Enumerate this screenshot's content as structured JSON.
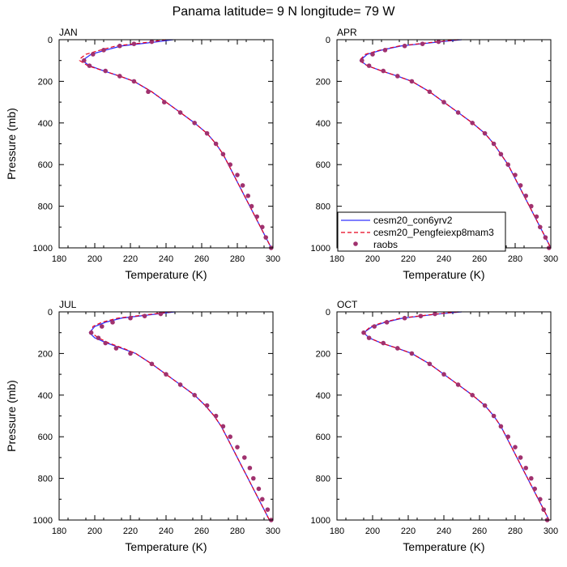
{
  "title": "Panama  latitude= 9 N longitude= 79 W",
  "colors": {
    "model1": "#3333ff",
    "model2": "#e8001c",
    "obs": "#a0316e"
  },
  "legend": {
    "panel": "APR",
    "placement": "lower-left",
    "entries": [
      "cesm20_con6yrv2",
      "cesm20_Pengfeiexp8mam3",
      "raobs"
    ]
  },
  "chart_data": [
    {
      "type": "line",
      "title": "JAN",
      "xlabel": "Temperature (K)",
      "ylabel": "Pressure (mb)",
      "xlim": [
        180,
        300
      ],
      "ylim": [
        1000,
        0
      ],
      "y_inverted": true,
      "xticks": [
        180,
        200,
        220,
        240,
        260,
        280,
        300
      ],
      "yticks": [
        0,
        200,
        400,
        600,
        800,
        1000
      ],
      "series": [
        {
          "name": "cesm20_con6yrv2",
          "style": "solid",
          "pressure": [
            0,
            10,
            30,
            50,
            70,
            100,
            125,
            150,
            175,
            200,
            250,
            300,
            350,
            400,
            450,
            500,
            550,
            600,
            650,
            700,
            750,
            800,
            850,
            900,
            950,
            1000
          ],
          "temperature": [
            244,
            235,
            215,
            206,
            198,
            193,
            197,
            205,
            214,
            222,
            232,
            240,
            248,
            256,
            263,
            268,
            272,
            275,
            278,
            281,
            284,
            287,
            290,
            293,
            296,
            299
          ]
        },
        {
          "name": "cesm20_Pengfeiexp8mam3",
          "style": "dashed",
          "pressure": [
            0,
            10,
            30,
            50,
            70,
            90,
            100,
            125,
            150,
            175,
            200,
            250,
            300,
            350,
            400,
            450,
            500,
            550,
            600,
            650,
            700,
            750,
            800,
            850,
            900,
            950,
            1000
          ],
          "temperature": [
            240,
            232,
            212,
            203,
            195,
            192,
            191.5,
            196,
            205,
            214,
            222,
            232,
            240,
            248,
            256,
            263,
            268,
            272,
            275,
            278,
            281,
            284,
            287,
            290,
            293,
            296,
            299
          ]
        },
        {
          "name": "raobs",
          "style": "markers",
          "pressure": [
            10,
            20,
            30,
            50,
            70,
            100,
            125,
            150,
            175,
            200,
            250,
            300,
            350,
            400,
            450,
            500,
            550,
            600,
            650,
            700,
            750,
            800,
            850,
            900,
            950,
            1000
          ],
          "temperature": [
            232,
            222,
            214,
            205,
            199,
            194,
            197,
            206,
            214,
            222,
            230,
            239,
            248,
            256,
            263,
            268,
            272,
            276,
            280,
            283,
            286,
            288,
            291,
            294,
            296,
            299
          ]
        }
      ]
    },
    {
      "type": "line",
      "title": "APR",
      "xlabel": "Temperature (K)",
      "ylabel": "",
      "xlim": [
        180,
        300
      ],
      "ylim": [
        1000,
        0
      ],
      "y_inverted": true,
      "xticks": [
        180,
        200,
        220,
        240,
        260,
        280,
        300
      ],
      "yticks": [
        0,
        200,
        400,
        600,
        800,
        1000
      ],
      "series": [
        {
          "name": "cesm20_con6yrv2",
          "style": "solid",
          "pressure": [
            0,
            10,
            30,
            50,
            70,
            100,
            125,
            150,
            175,
            200,
            250,
            300,
            350,
            400,
            450,
            500,
            550,
            600,
            650,
            700,
            750,
            800,
            850,
            900,
            950,
            1000
          ],
          "temperature": [
            250,
            238,
            216,
            205,
            197,
            193,
            197,
            205,
            214,
            222,
            232,
            240,
            248,
            256,
            263,
            268,
            272,
            276,
            279,
            282,
            285,
            288,
            291,
            294,
            297,
            300
          ]
        },
        {
          "name": "cesm20_Pengfeiexp8mam3",
          "style": "dashed",
          "pressure": [
            0,
            10,
            30,
            50,
            70,
            100,
            125,
            150,
            175,
            200,
            250,
            300,
            350,
            400,
            450,
            500,
            550,
            600,
            650,
            700,
            750,
            800,
            850,
            900,
            950,
            1000
          ],
          "temperature": [
            248,
            236,
            215,
            204,
            196,
            192.5,
            197,
            205,
            214,
            222,
            232,
            240,
            248,
            256,
            263,
            268,
            272,
            276,
            279,
            282,
            285,
            288,
            291,
            294,
            297,
            300
          ]
        },
        {
          "name": "raobs",
          "style": "markers",
          "pressure": [
            10,
            20,
            30,
            50,
            70,
            100,
            125,
            150,
            175,
            200,
            250,
            300,
            350,
            400,
            450,
            500,
            550,
            600,
            650,
            700,
            750,
            800,
            850,
            900,
            950,
            1000
          ],
          "temperature": [
            237,
            228,
            218,
            207,
            200,
            194,
            198,
            206,
            214,
            222,
            232,
            240,
            248,
            256,
            263,
            268,
            272,
            276,
            280,
            283,
            286,
            289,
            292,
            294,
            297,
            299
          ]
        }
      ]
    },
    {
      "type": "line",
      "title": "JUL",
      "xlabel": "Temperature (K)",
      "ylabel": "Pressure (mb)",
      "xlim": [
        180,
        300
      ],
      "ylim": [
        1000,
        0
      ],
      "y_inverted": true,
      "xticks": [
        180,
        200,
        220,
        240,
        260,
        280,
        300
      ],
      "yticks": [
        0,
        200,
        400,
        600,
        800,
        1000
      ],
      "series": [
        {
          "name": "cesm20_con6yrv2",
          "style": "solid",
          "pressure": [
            0,
            10,
            30,
            50,
            70,
            100,
            125,
            150,
            175,
            200,
            250,
            300,
            350,
            400,
            450,
            500,
            550,
            600,
            650,
            700,
            750,
            800,
            850,
            900,
            950,
            1000
          ],
          "temperature": [
            245,
            235,
            215,
            206,
            200,
            197,
            200,
            207,
            215,
            223,
            232,
            240,
            248,
            256,
            262,
            267,
            271,
            274,
            277,
            280,
            283,
            286,
            289,
            292,
            295,
            298
          ]
        },
        {
          "name": "cesm20_Pengfeiexp8mam3",
          "style": "dashed",
          "pressure": [
            0,
            10,
            30,
            50,
            70,
            100,
            125,
            150,
            175,
            200,
            250,
            300,
            350,
            400,
            450,
            500,
            550,
            600,
            650,
            700,
            750,
            800,
            850,
            900,
            950,
            1000
          ],
          "temperature": [
            243,
            233,
            213,
            204,
            199,
            198,
            202,
            208,
            216,
            223,
            232,
            240,
            248,
            256,
            262,
            267,
            271,
            274,
            277,
            280,
            283,
            286,
            289,
            292,
            295,
            298
          ]
        },
        {
          "name": "raobs",
          "style": "markers",
          "pressure": [
            10,
            20,
            30,
            50,
            70,
            100,
            125,
            150,
            175,
            200,
            250,
            300,
            350,
            400,
            450,
            500,
            550,
            600,
            650,
            700,
            750,
            800,
            850,
            900,
            950,
            1000
          ],
          "temperature": [
            237,
            228,
            220,
            210,
            204,
            198,
            202,
            206,
            212,
            220,
            232,
            240,
            248,
            256,
            263,
            268,
            272,
            276,
            280,
            284,
            287,
            289,
            292,
            294,
            297,
            299
          ]
        }
      ]
    },
    {
      "type": "line",
      "title": "OCT",
      "xlabel": "Temperature (K)",
      "ylabel": "",
      "xlim": [
        180,
        300
      ],
      "ylim": [
        1000,
        0
      ],
      "y_inverted": true,
      "xticks": [
        180,
        200,
        220,
        240,
        260,
        280,
        300
      ],
      "yticks": [
        0,
        200,
        400,
        600,
        800,
        1000
      ],
      "series": [
        {
          "name": "cesm20_con6yrv2",
          "style": "solid",
          "pressure": [
            0,
            10,
            30,
            50,
            70,
            100,
            125,
            150,
            175,
            200,
            250,
            300,
            350,
            400,
            450,
            500,
            550,
            600,
            650,
            700,
            750,
            800,
            850,
            900,
            950,
            1000
          ],
          "temperature": [
            250,
            237,
            217,
            207,
            200,
            195,
            198,
            205,
            214,
            222,
            232,
            240,
            248,
            256,
            263,
            268,
            272,
            275,
            278,
            281,
            284,
            287,
            290,
            293,
            296,
            299
          ]
        },
        {
          "name": "cesm20_Pengfeiexp8mam3",
          "style": "dashed",
          "pressure": [
            0,
            10,
            30,
            50,
            70,
            100,
            125,
            150,
            175,
            200,
            250,
            300,
            350,
            400,
            450,
            500,
            550,
            600,
            650,
            700,
            750,
            800,
            850,
            900,
            950,
            1000
          ],
          "temperature": [
            248,
            236,
            216,
            206,
            199,
            195,
            198,
            205,
            214,
            222,
            232,
            240,
            248,
            256,
            263,
            268,
            272,
            275,
            278,
            281,
            284,
            287,
            290,
            293,
            296,
            299
          ]
        },
        {
          "name": "raobs",
          "style": "markers",
          "pressure": [
            10,
            20,
            30,
            50,
            70,
            100,
            125,
            150,
            175,
            200,
            250,
            300,
            350,
            400,
            450,
            500,
            550,
            600,
            650,
            700,
            750,
            800,
            850,
            900,
            950,
            1000
          ],
          "temperature": [
            235,
            227,
            218,
            208,
            201,
            195,
            198,
            206,
            214,
            222,
            232,
            240,
            248,
            256,
            263,
            268,
            272,
            276,
            280,
            283,
            286,
            289,
            291,
            294,
            296,
            298
          ]
        }
      ]
    }
  ]
}
